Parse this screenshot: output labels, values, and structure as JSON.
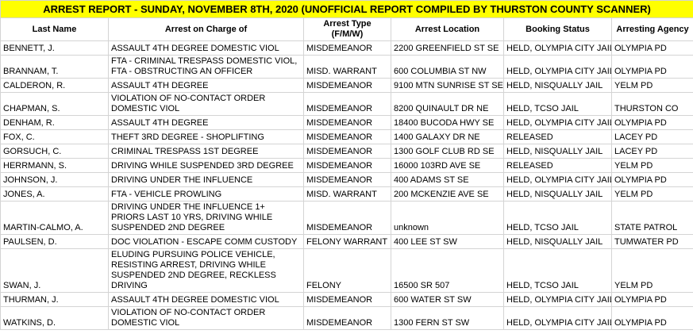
{
  "header": {
    "title": "ARREST REPORT - SUNDAY, NOVEMBER 8TH, 2020  (UNOFFICIAL REPORT COMPILED BY THURSTON COUNTY SCANNER)"
  },
  "table": {
    "columns": [
      "Last Name",
      "Arrest on Charge of",
      "Arrest Type (F/M/W)",
      "Arrest Location",
      "Booking Status",
      "Arresting Agency"
    ],
    "rows": [
      [
        "BENNETT, J.",
        "ASSAULT 4TH DEGREE DOMESTIC VIOL",
        "MISDEMEANOR",
        "2200 GREENFIELD ST SE",
        "HELD, OLYMPIA CITY JAIL",
        "OLYMPIA PD"
      ],
      [
        "BRANNAM, T.",
        "FTA - CRIMINAL TRESPASS DOMESTIC VIOL, FTA - OBSTRUCTING AN OFFICER",
        "MISD. WARRANT",
        "600 COLUMBIA ST NW",
        "HELD, OLYMPIA CITY JAIL",
        "OLYMPIA PD"
      ],
      [
        "CALDERON, R.",
        "ASSAULT 4TH DEGREE",
        "MISDEMEANOR",
        "9100 MTN SUNRISE ST SE",
        "HELD, NISQUALLY JAIL",
        "YELM PD"
      ],
      [
        "CHAPMAN, S.",
        "VIOLATION OF NO-CONTACT ORDER DOMESTIC VIOL",
        "MISDEMEANOR",
        "8200 QUINAULT DR NE",
        "HELD, TCSO JAIL",
        "THURSTON CO"
      ],
      [
        "DENHAM, R.",
        "ASSAULT 4TH DEGREE",
        "MISDEMEANOR",
        "18400 BUCODA HWY SE",
        "HELD, OLYMPIA CITY JAIL",
        "OLYMPIA PD"
      ],
      [
        "FOX, C.",
        "THEFT 3RD DEGREE - SHOPLIFTING",
        "MISDEMEANOR",
        "1400 GALAXY DR NE",
        "RELEASED",
        "LACEY PD"
      ],
      [
        "GORSUCH, C.",
        "CRIMINAL TRESPASS 1ST DEGREE",
        "MISDEMEANOR",
        "1300 GOLF CLUB RD SE",
        "HELD, NISQUALLY JAIL",
        "LACEY PD"
      ],
      [
        "HERRMANN, S.",
        "DRIVING WHILE SUSPENDED 3RD DEGREE",
        "MISDEMEANOR",
        "16000 103RD AVE SE",
        "RELEASED",
        "YELM PD"
      ],
      [
        "JOHNSON, J.",
        "DRIVING UNDER THE INFLUENCE",
        "MISDEMEANOR",
        "400 ADAMS ST SE",
        "HELD, OLYMPIA CITY JAIL",
        "OLYMPIA PD"
      ],
      [
        "JONES, A.",
        "FTA - VEHICLE PROWLING",
        "MISD. WARRANT",
        "200 MCKENZIE AVE SE",
        "HELD, NISQUALLY JAIL",
        "YELM PD"
      ],
      [
        "MARTIN-CALMO, A.",
        "DRIVING UNDER THE INFLUENCE 1+ PRIORS LAST 10 YRS, DRIVING WHILE SUSPENDED 2ND DEGREE",
        "MISDEMEANOR",
        "unknown",
        "HELD, TCSO JAIL",
        "STATE PATROL"
      ],
      [
        "PAULSEN, D.",
        "DOC VIOLATION - ESCAPE COMM CUSTODY",
        "FELONY WARRANT",
        "400 LEE ST SW",
        "HELD, NISQUALLY JAIL",
        "TUMWATER PD"
      ],
      [
        "SWAN, J.",
        "ELUDING PURSUING POLICE VEHICLE, RESISTING ARREST, DRIVING WHILE SUSPENDED 2ND DEGREE, RECKLESS DRIVING",
        "FELONY",
        "16500 SR 507",
        "HELD, TCSO JAIL",
        "YELM PD"
      ],
      [
        "THURMAN, J.",
        "ASSAULT 4TH DEGREE DOMESTIC VIOL",
        "MISDEMEANOR",
        "600 WATER ST SW",
        "HELD, OLYMPIA CITY JAIL",
        "OLYMPIA PD"
      ],
      [
        "WATKINS, D.",
        "VIOLATION OF NO-CONTACT ORDER DOMESTIC VIOL",
        "MISDEMEANOR",
        "1300 FERN ST SW",
        "HELD, OLYMPIA CITY JAIL",
        "OLYMPIA PD"
      ]
    ]
  }
}
